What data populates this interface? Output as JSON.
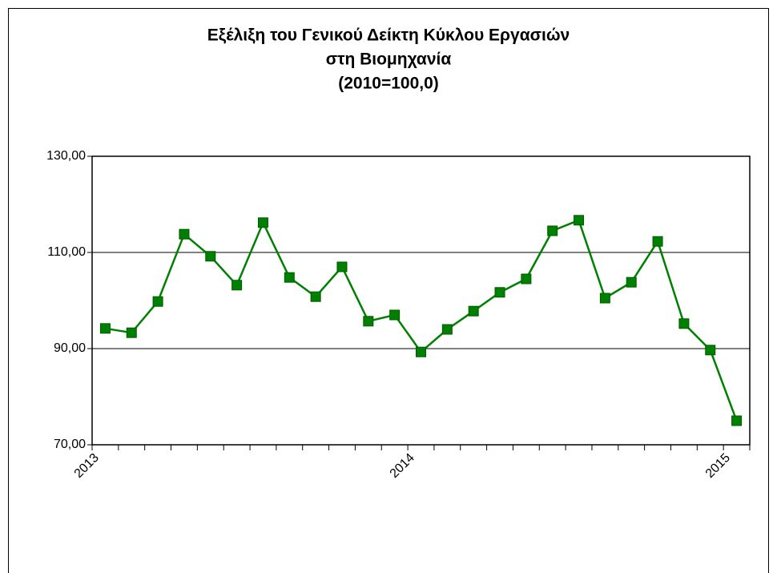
{
  "chart_data": {
    "type": "line",
    "title": [
      "Εξέλιξη του Γενικού Δείκτη Κύκλου Εργασιών",
      "στη Βιομηχανία",
      "(2010=100,0)"
    ],
    "categories": [
      "2013",
      null,
      null,
      null,
      null,
      null,
      null,
      null,
      null,
      null,
      null,
      null,
      "2014",
      null,
      null,
      null,
      null,
      null,
      null,
      null,
      null,
      null,
      null,
      null,
      "2015"
    ],
    "series": [
      {
        "name": null,
        "color": "#008000",
        "values": [
          94.2,
          93.3,
          99.8,
          113.8,
          109.2,
          103.2,
          116.2,
          104.8,
          100.8,
          107.0,
          95.7,
          97.0,
          89.3,
          94.0,
          97.8,
          101.7,
          104.5,
          114.5,
          116.7,
          100.5,
          103.8,
          112.3,
          95.2,
          89.7,
          75.0
        ]
      }
    ],
    "ylim": [
      70,
      130
    ],
    "yticks": [
      {
        "value": 70,
        "label": "70,00"
      },
      {
        "value": 90,
        "label": "90,00"
      },
      {
        "value": 110,
        "label": "110,00"
      },
      {
        "value": 130,
        "label": "130,00"
      }
    ],
    "grid": true
  }
}
